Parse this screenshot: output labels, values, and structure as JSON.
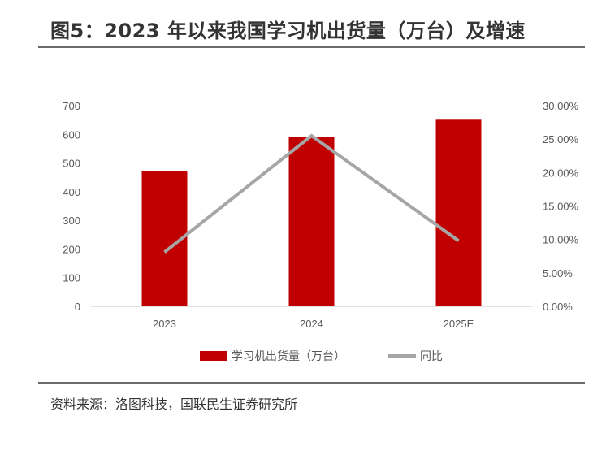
{
  "title": "图5：2023 年以来我国学习机出货量（万台）及增速",
  "source": "资料来源：洛图科技，国联民生证券研究所",
  "chart_data": {
    "type": "bar",
    "categories": [
      "2023",
      "2024",
      "2025E"
    ],
    "series": [
      {
        "name": "学习机出货量（万台）",
        "type": "bar",
        "axis": "left",
        "color": "#C00000",
        "values": [
          473,
          592,
          651
        ]
      },
      {
        "name": "同比",
        "type": "line",
        "axis": "right",
        "color": "#A6A6A6",
        "values": [
          0.081,
          0.255,
          0.098
        ]
      }
    ],
    "ylim": [
      0,
      700
    ],
    "yticks": [
      "0",
      "100",
      "200",
      "300",
      "400",
      "500",
      "600",
      "700"
    ],
    "y2lim": [
      0,
      0.3
    ],
    "y2ticks": [
      "0.00%",
      "5.00%",
      "10.00%",
      "15.00%",
      "20.00%",
      "25.00%",
      "30.00%"
    ],
    "grid": false,
    "legend": "bottom"
  }
}
